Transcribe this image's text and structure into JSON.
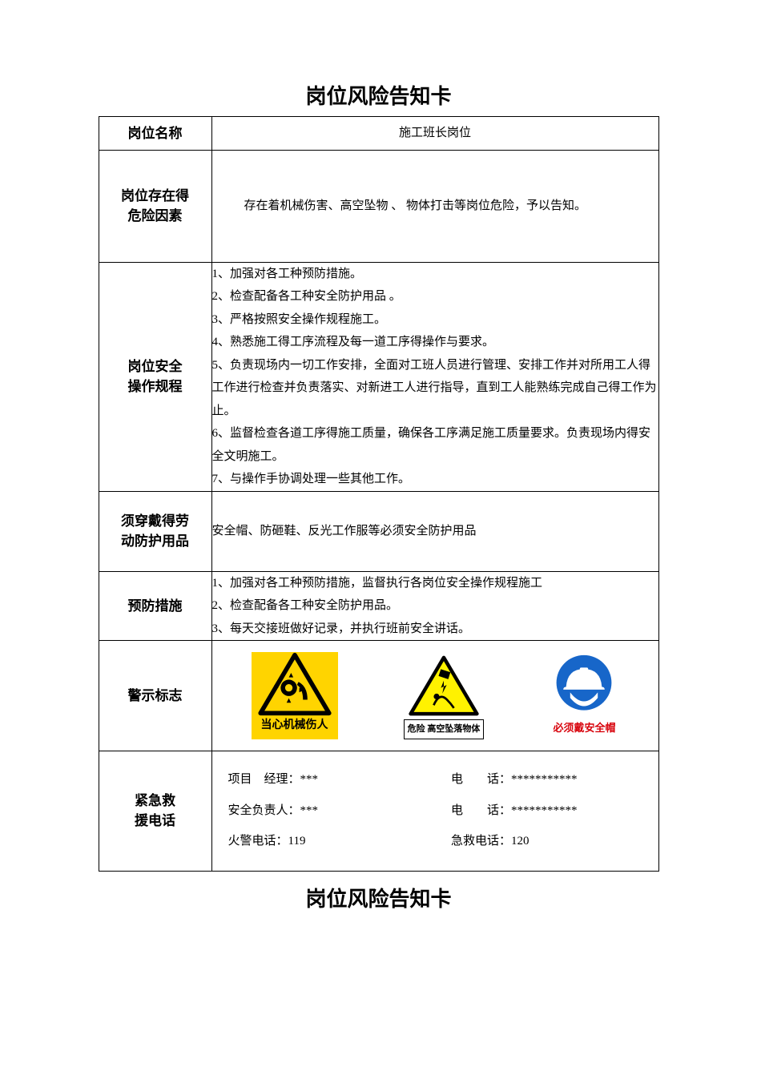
{
  "document": {
    "title": "岗位风险告知卡",
    "title2": "岗位风险告知卡"
  },
  "labels": {
    "position": "岗位名称",
    "risk": "岗位存在得\n危险因素",
    "procedure": "岗位安全\n操作规程",
    "ppe": "须穿戴得劳\n动防护用品",
    "prevention": "预防措施",
    "signs": "警示标志",
    "emergency": "紧急救\n援电话"
  },
  "content": {
    "position": "施工班长岗位",
    "risk": "存在着机械伤害、高空坠物 、 物体打击等岗位危险，予以告知。",
    "procedure": [
      "1、加强对各工种预防措施。",
      "2、检查配备各工种安全防护用品 。",
      "3、严格按照安全操作规程施工。",
      "4、熟悉施工得工序流程及每一道工序得操作与要求。",
      "5、负责现场内一切工作安排，全面对工班人员进行管理、安排工作并对所用工人得工作进行检查并负责落实、对新进工人进行指导，直到工人能熟练完成自己得工作为止。",
      "6、监督检查各道工序得施工质量，确保各工序满足施工质量要求。负责现场内得安全文明施工。",
      "7、与操作手协调处理一些其他工作。"
    ],
    "ppe": "安全帽、防砸鞋、反光工作服等必须安全防护用品",
    "prevention": [
      "1、加强对各工种预防措施，监督执行各岗位安全操作规程施工",
      "2、检查配备各工种安全防护用品。",
      "3、每天交接班做好记录，并执行班前安全讲话。"
    ]
  },
  "signs": {
    "s1": {
      "caption": "当心机械伤人",
      "triangle_fill": "#ffd400",
      "triangle_stroke": "#000000"
    },
    "s2": {
      "caption": "危险 高空坠落物体",
      "triangle_fill": "#fff200",
      "triangle_stroke": "#000000"
    },
    "s3": {
      "caption": "必须戴安全帽",
      "circle_fill": "#1766c9",
      "caption_color": "#d8040d"
    }
  },
  "emergency": {
    "pm_label": "项目　经理：",
    "pm_value": "***",
    "pm_tel_label": "电　　话：",
    "pm_tel_value": "***********",
    "safety_label": "安全负责人：",
    "safety_value": "***",
    "safety_tel_label": "电　　话：",
    "safety_tel_value": "***********",
    "fire_label": "火警电话：",
    "fire_value": "119",
    "aid_label": "急救电话：",
    "aid_value": "120"
  },
  "style": {
    "page_bg": "#ffffff",
    "text_color": "#000000",
    "border_color": "#000000",
    "title_fontsize": 26,
    "label_fontsize": 17,
    "content_fontsize": 15,
    "line_height": 1.9
  }
}
